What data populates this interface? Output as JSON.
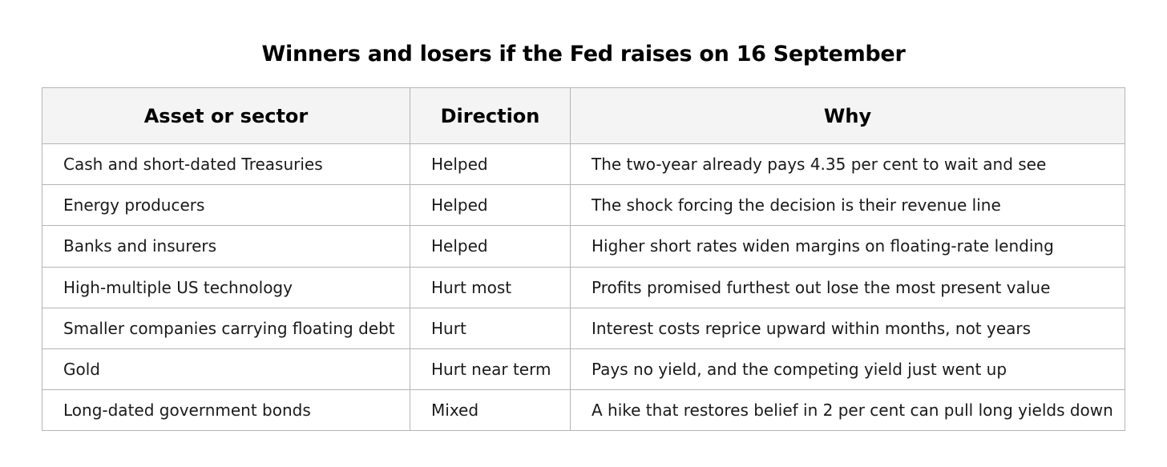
{
  "title": "Winners and losers if the Fed raises on 16 September",
  "table": {
    "headers": [
      "Asset or sector",
      "Direction",
      "Why"
    ],
    "rows": [
      [
        "Cash and short-dated Treasuries",
        "Helped",
        "The two-year already pays 4.35 per cent to wait and see"
      ],
      [
        "Energy producers",
        "Helped",
        "The shock forcing the decision is their revenue line"
      ],
      [
        "Banks and insurers",
        "Helped",
        "Higher short rates widen margins on floating-rate lending"
      ],
      [
        "High-multiple US technology",
        "Hurt most",
        "Profits promised furthest out lose the most present value"
      ],
      [
        "Smaller companies carrying floating debt",
        "Hurt",
        "Interest costs reprice upward within months, not years"
      ],
      [
        "Gold",
        "Hurt near term",
        "Pays no yield, and the competing yield just went up"
      ],
      [
        "Long-dated government bonds",
        "Mixed",
        "A hike that restores belief in 2 per cent can pull long yields down"
      ]
    ]
  }
}
